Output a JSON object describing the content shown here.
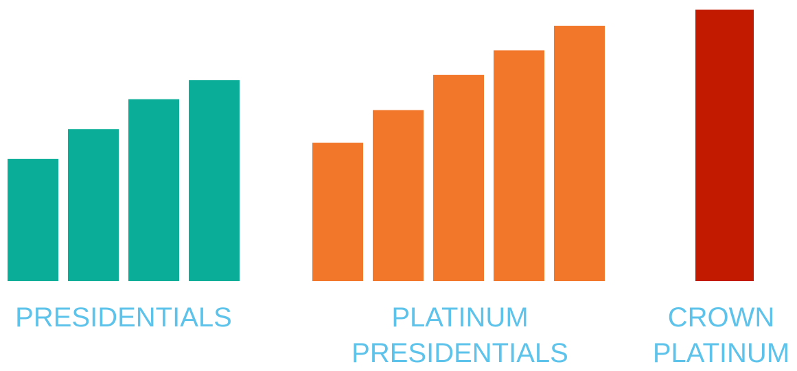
{
  "chart_data": {
    "type": "bar",
    "title": "",
    "xlabel": "",
    "ylabel": "",
    "ylim": [
      0,
      100
    ],
    "grid": false,
    "legend": "none",
    "groups": [
      {
        "label_lines": [
          "PRESIDENTIALS"
        ],
        "color": "#0aae98",
        "values": [
          45,
          56,
          67,
          74
        ]
      },
      {
        "label_lines": [
          "PLATINUM",
          "PRESIDENTIALS"
        ],
        "color": "#f3772b",
        "values": [
          51,
          63,
          76,
          85,
          94
        ]
      },
      {
        "label_lines": [
          "CROWN",
          "PLATINUM"
        ],
        "color": "#c21a00",
        "values": [
          100
        ]
      }
    ]
  }
}
